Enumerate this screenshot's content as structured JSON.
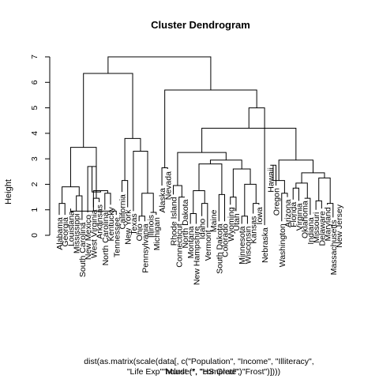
{
  "chart_data": {
    "type": "dendrogram",
    "title": "Cluster Dendrogram",
    "ylabel": "Height",
    "xlabel_lines": [
      "dist(as.matrix(scale(data[, c(\"Population\", \"Income\", \"Illiteracy\",",
      "\"Life Exp\"\"Murder\", \"HS Grad\", \"Frost\")])))",
      "hclust (*, \"complete\")"
    ],
    "ylim": [
      0,
      7
    ],
    "yticks": [
      0,
      1,
      2,
      3,
      4,
      5,
      6,
      7
    ],
    "ytick_labels": [
      "0",
      "1",
      "2",
      "3",
      "4",
      "5",
      "6",
      "7"
    ],
    "labels": [
      "Alabama",
      "Georgia",
      "Louisiana",
      "Mississippi",
      "South Carolina",
      "New Mexico",
      "West Virginia",
      "Arkansas",
      "North Carolina",
      "Kentucky",
      "Tennessee",
      "California",
      "New York",
      "Texas",
      "Ohio",
      "Pennsylvania",
      "Illinois",
      "Michigan",
      "Alaska",
      "Nevada",
      "Rhode Island",
      "Connecticut",
      "North Dakota",
      "Montana",
      "New Hampshire",
      "Idaho",
      "Vermont",
      "Maine",
      "South Dakota",
      "Colorado",
      "Wyoming",
      "Utah",
      "Minnesota",
      "Wisconsin",
      "Kansas",
      "Iowa",
      "Nebraska",
      "Hawaii",
      "Oregon",
      "Washington",
      "Arizona",
      "Florida",
      "Virginia",
      "Oklahoma",
      "Indiana",
      "Missouri",
      "Delaware",
      "Maryland",
      "Massachusetts",
      "New Jersey"
    ],
    "leaf_heights": [
      0.8,
      0.8,
      1.05,
      0.95,
      0.6,
      0.9,
      1.1,
      1.3,
      1.0,
      1.2,
      0.8,
      1.7,
      1.1,
      0.95,
      0.55,
      0.55,
      0.9,
      0.8,
      1.95,
      2.6,
      1.6,
      0.55,
      1.5,
      0.45,
      0.45,
      0.75,
      0.3,
      1.1,
      0.55,
      0.55,
      1.2,
      0.95,
      0.45,
      0.45,
      0.85,
      1.2,
      0.4,
      2.75,
      1.95,
      0.55,
      1.5,
      1.4,
      1.35,
      1.45,
      0.8,
      1.0,
      1.05,
      1.2,
      0.7,
      1.3
    ],
    "merges": [
      {
        "left": -1,
        "right": -2,
        "height": 1.25
      },
      {
        "left": -4,
        "right": -5,
        "height": 1.55
      },
      {
        "left": 1,
        "right": 2,
        "height": 1.9
      },
      {
        "left": -7,
        "right": -8,
        "height": 1.45
      },
      {
        "left": -6,
        "right": 4,
        "height": 2.7
      },
      {
        "left": -9,
        "right": -10,
        "height": 1.65
      },
      {
        "left": -11,
        "right": -3,
        "height": 0.95
      },
      {
        "left": 6,
        "right": 7,
        "height": 1.75
      },
      {
        "left": 5,
        "right": 8,
        "height": 1.7
      },
      {
        "left": 3,
        "right": 9,
        "height": 3.45
      },
      {
        "left": -12,
        "right": -13,
        "height": 2.15
      },
      {
        "left": -15,
        "right": -16,
        "height": 0.75
      },
      {
        "left": -17,
        "right": -18,
        "height": 0.9
      },
      {
        "left": 12,
        "right": 13,
        "height": 1.65
      },
      {
        "left": -14,
        "right": 14,
        "height": 3.3
      },
      {
        "left": 11,
        "right": 15,
        "height": 3.8
      },
      {
        "left": 10,
        "right": 16,
        "height": 6.35
      },
      {
        "left": -19,
        "right": -20,
        "height": 2.65
      },
      {
        "left": -22,
        "right": -23,
        "height": 1.5
      },
      {
        "left": -21,
        "right": 19,
        "height": 1.95
      },
      {
        "left": -24,
        "right": -25,
        "height": 0.85
      },
      {
        "left": -26,
        "right": -27,
        "height": 1.25
      },
      {
        "left": 21,
        "right": 22,
        "height": 1.75
      },
      {
        "left": -29,
        "right": -30,
        "height": 1.6
      },
      {
        "left": 23,
        "right": 24,
        "height": 2.8
      },
      {
        "left": -31,
        "right": -32,
        "height": 1.5
      },
      {
        "left": -33,
        "right": -34,
        "height": 0.75
      },
      {
        "left": -35,
        "right": -36,
        "height": 1.25
      },
      {
        "left": 27,
        "right": 28,
        "height": 2.0
      },
      {
        "left": 26,
        "right": 29,
        "height": 2.6
      },
      {
        "left": 25,
        "right": 30,
        "height": 2.95
      },
      {
        "left": 20,
        "right": 31,
        "height": 3.25
      },
      {
        "left": -38,
        "right": -39,
        "height": 2.75
      },
      {
        "left": -40,
        "right": -41,
        "height": 1.65
      },
      {
        "left": 33,
        "right": 34,
        "height": 2.15
      },
      {
        "left": -42,
        "right": -43,
        "height": 1.85
      },
      {
        "left": -44,
        "right": -45,
        "height": 1.45
      },
      {
        "left": 36,
        "right": 37,
        "height": 2.05
      },
      {
        "left": -46,
        "right": -47,
        "height": 1.35
      },
      {
        "left": -48,
        "right": -49,
        "height": 1.25
      },
      {
        "left": 39,
        "right": 40,
        "height": 2.25
      },
      {
        "left": 38,
        "right": 41,
        "height": 2.45
      },
      {
        "left": 35,
        "right": 42,
        "height": 2.95
      },
      {
        "left": 32,
        "right": 43,
        "height": 4.2
      },
      {
        "left": -37,
        "right": 44,
        "height": 5.0
      },
      {
        "left": 18,
        "right": 45,
        "height": 5.7
      },
      {
        "left": 17,
        "right": 46,
        "height": 7.0
      }
    ]
  }
}
